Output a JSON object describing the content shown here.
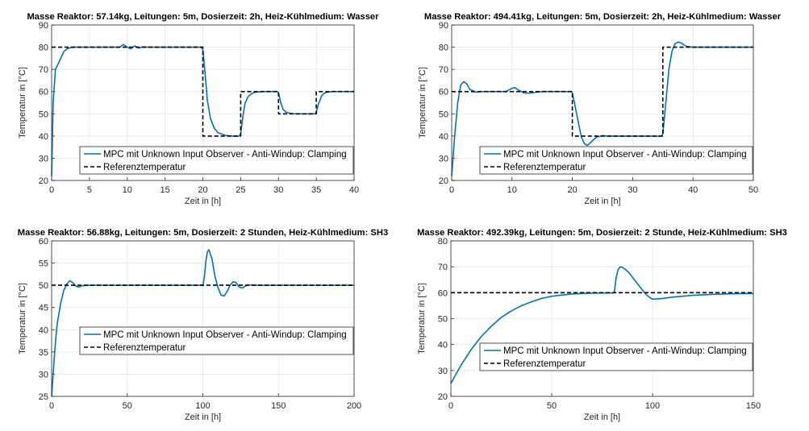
{
  "chart_data": [
    {
      "type": "line",
      "title": "Masse Reaktor: 57.14kg, Leitungen: 5m, Dosierzeit: 2h, Heiz-Kühlmedium: Wasser",
      "xlabel": "Zeit in [h]",
      "ylabel": "Temperatur in [°C]",
      "xlim": [
        0,
        40
      ],
      "ylim": [
        20,
        90
      ],
      "xticks": [
        "0",
        "5",
        "10",
        "15",
        "20",
        "25",
        "30",
        "35",
        "40"
      ],
      "yticks": [
        "20",
        "30",
        "40",
        "50",
        "60",
        "70",
        "80",
        "90"
      ],
      "grid": true,
      "legend_position": "bottom-right",
      "series": [
        {
          "name": "MPC mit Unknown Input Observer - Anti-Windup: Clamping",
          "color": "#0072BD",
          "style": "solid",
          "x": [
            0,
            0.2,
            0.5,
            0.8,
            1.2,
            1.6,
            2,
            2.5,
            3,
            4,
            6,
            9,
            9.5,
            10,
            10.5,
            11,
            11.5,
            12,
            13,
            15,
            19.8,
            20,
            20.3,
            20.6,
            21,
            21.5,
            22,
            23,
            24,
            24.8,
            25,
            25.3,
            25.6,
            26,
            26.5,
            27,
            28,
            29.8,
            30,
            30.3,
            30.6,
            31,
            31.5,
            32,
            34.8,
            35,
            35.3,
            35.7,
            36,
            36.5,
            37,
            38,
            40
          ],
          "y": [
            22,
            55,
            70,
            72,
            75,
            78,
            79.2,
            79.8,
            80,
            80,
            80,
            80,
            81.2,
            80,
            79.3,
            80.6,
            79.6,
            80.1,
            80,
            80,
            80,
            79,
            68,
            56,
            48,
            43.5,
            41.5,
            40.3,
            40,
            40,
            41,
            49,
            55,
            57.8,
            59.2,
            59.8,
            60,
            60,
            59.5,
            55,
            52,
            50.8,
            50.2,
            50,
            50,
            50.5,
            54.5,
            58,
            59.2,
            59.8,
            60,
            60,
            60
          ]
        },
        {
          "name": "Referenztemperatur",
          "color": "#000000",
          "style": "dashed",
          "x": [
            0,
            20,
            20,
            25,
            25,
            30,
            30,
            35,
            35,
            40
          ],
          "y": [
            80,
            80,
            40,
            40,
            60,
            60,
            50,
            50,
            60,
            60
          ]
        }
      ]
    },
    {
      "type": "line",
      "title": "Masse Reaktor: 494.41kg, Leitungen: 5m, Dosierzeit: 2h, Heiz-Kühlmedium: Wasser",
      "xlabel": "Zeit in [h]",
      "ylabel": "Temperatur in [°C]",
      "xlim": [
        0,
        50
      ],
      "ylim": [
        20,
        90
      ],
      "xticks": [
        "0",
        "10",
        "20",
        "30",
        "40",
        "50"
      ],
      "yticks": [
        "20",
        "30",
        "40",
        "50",
        "60",
        "70",
        "80",
        "90"
      ],
      "grid": true,
      "legend_position": "bottom-right",
      "series": [
        {
          "name": "MPC mit Unknown Input Observer - Anti-Windup: Clamping",
          "color": "#0072BD",
          "style": "solid",
          "x": [
            0,
            0.5,
            1,
            1.5,
            2,
            2.5,
            3,
            4,
            5,
            7,
            9,
            10,
            10.5,
            11,
            12,
            13,
            14,
            15,
            17,
            19.8,
            20,
            20.5,
            21,
            21.5,
            22,
            22.5,
            23,
            24,
            25,
            26,
            28,
            30,
            34.8,
            35,
            35.5,
            36,
            36.5,
            37,
            37.5,
            38,
            38.5,
            39,
            40,
            42,
            50
          ],
          "y": [
            22,
            40,
            55,
            63,
            64.5,
            63.5,
            61,
            59.8,
            60,
            60,
            60,
            61.5,
            61.8,
            60.8,
            59.4,
            59.3,
            59.7,
            60,
            60,
            60,
            59.5,
            53,
            46,
            39.5,
            36.5,
            35.8,
            37,
            39.5,
            40.2,
            40,
            40,
            40,
            40,
            41,
            55,
            70,
            78,
            81.5,
            82.3,
            82,
            81,
            80.3,
            80,
            80,
            80
          ]
        },
        {
          "name": "Referenztemperatur",
          "color": "#000000",
          "style": "dashed",
          "x": [
            0,
            20,
            20,
            35,
            35,
            50
          ],
          "y": [
            60,
            60,
            40,
            40,
            80,
            80
          ]
        }
      ]
    },
    {
      "type": "line",
      "title": "Masse Reaktor: 56.88kg, Leitungen: 5m, Dosierzeit: 2 Stunden, Heiz-Kühlmedium: SH3",
      "xlabel": "Zeit in [h]",
      "ylabel": "Temperatur in [°C]",
      "xlim": [
        0,
        200
      ],
      "ylim": [
        25,
        60
      ],
      "xticks": [
        "0",
        "50",
        "100",
        "150",
        "200"
      ],
      "yticks": [
        "25",
        "30",
        "35",
        "40",
        "45",
        "50",
        "55",
        "60"
      ],
      "grid": true,
      "legend_position": "bottom-right",
      "series": [
        {
          "name": "MPC mit Unknown Input Observer - Anti-Windup: Clamping",
          "color": "#0072BD",
          "style": "solid",
          "x": [
            0,
            1,
            2,
            3,
            4,
            6,
            8,
            10,
            12,
            14,
            16,
            18,
            20,
            25,
            30,
            40,
            60,
            80,
            100,
            101,
            102,
            103,
            104,
            106,
            108,
            110,
            112,
            114,
            116,
            118,
            120,
            122,
            124,
            126,
            128,
            130,
            135,
            140,
            160,
            200
          ],
          "y": [
            25,
            30,
            35,
            39,
            42,
            46,
            48.8,
            50.3,
            51,
            50.6,
            49.8,
            49.6,
            49.9,
            50,
            50,
            50,
            50,
            50,
            50,
            52,
            55.5,
            57.5,
            58,
            56,
            52,
            49.5,
            47.8,
            47.6,
            48.6,
            50,
            50.8,
            50.6,
            49.6,
            49.4,
            49.8,
            50.1,
            50,
            50,
            50,
            50
          ]
        },
        {
          "name": "Referenztemperatur",
          "color": "#000000",
          "style": "dashed",
          "x": [
            0,
            200
          ],
          "y": [
            50,
            50
          ]
        }
      ]
    },
    {
      "type": "line",
      "title": "Masse Reaktor: 492.39kg, Leitungen: 5m, Dosierzeit: 2 Stunde, Heiz-Kühlmedium: SH3",
      "xlabel": "Zeit in [h]",
      "ylabel": "Temperatur in [°C]",
      "xlim": [
        0,
        150
      ],
      "ylim": [
        20,
        80
      ],
      "xticks": [
        "0",
        "50",
        "100",
        "150"
      ],
      "yticks": [
        "20",
        "30",
        "40",
        "50",
        "60",
        "70",
        "80"
      ],
      "grid": true,
      "legend_position": "bottom-right",
      "series": [
        {
          "name": "MPC mit Unknown Input Observer - Anti-Windup: Clamping",
          "color": "#0072BD",
          "style": "solid",
          "x": [
            0,
            5,
            10,
            15,
            20,
            25,
            30,
            35,
            40,
            45,
            50,
            55,
            60,
            65,
            70,
            75,
            80,
            81,
            82,
            83,
            84,
            85,
            86,
            88,
            90,
            92,
            94,
            96,
            98,
            100,
            105,
            110,
            120,
            130,
            140,
            150
          ],
          "y": [
            25,
            32,
            38,
            43,
            47,
            50.5,
            53,
            55,
            56.5,
            57.8,
            58.6,
            59.1,
            59.5,
            59.7,
            59.85,
            59.9,
            59.9,
            60,
            66,
            69,
            70,
            69.8,
            69.3,
            68,
            66,
            64,
            62,
            60,
            58.5,
            57.5,
            57.8,
            58.3,
            59,
            59.4,
            59.6,
            59.7
          ]
        },
        {
          "name": "Referenztemperatur",
          "color": "#000000",
          "style": "dashed",
          "x": [
            0,
            150
          ],
          "y": [
            60,
            60
          ]
        }
      ]
    }
  ]
}
